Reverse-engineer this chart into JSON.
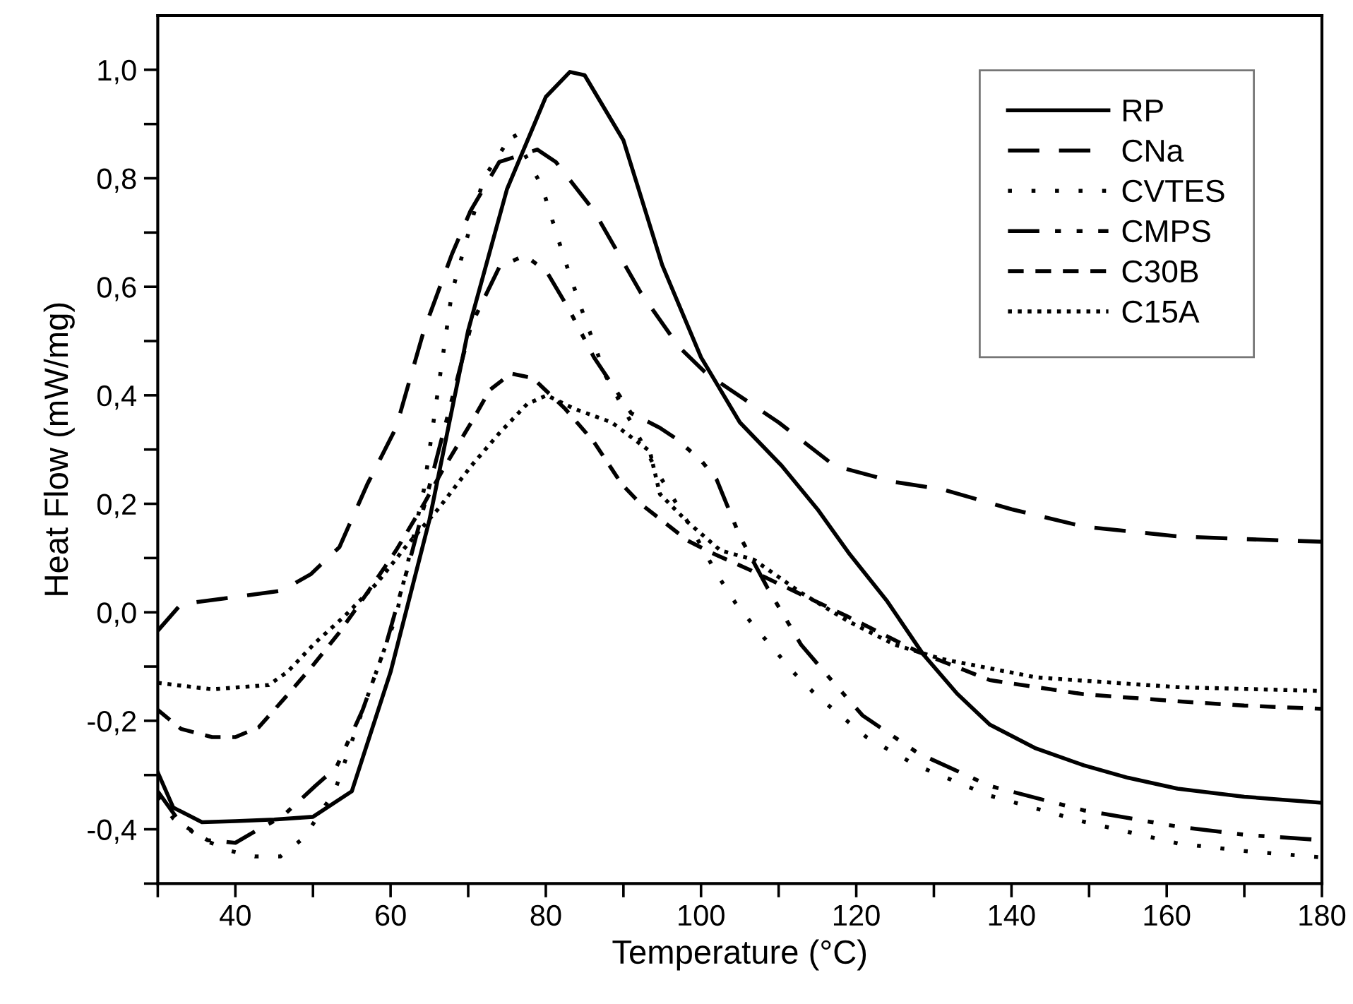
{
  "chart_data": {
    "type": "line",
    "xlabel": "Temperature (°C)",
    "ylabel": "Heat Flow (mW/mg)",
    "xlim": [
      30,
      180
    ],
    "ylim": [
      -0.5,
      1.1
    ],
    "xticks": [
      {
        "value": 30,
        "label": null
      },
      40,
      {
        "value": 50,
        "label": null
      },
      60,
      {
        "value": 70,
        "label": null
      },
      80,
      {
        "value": 90,
        "label": null
      },
      100,
      {
        "value": 110,
        "label": null
      },
      120,
      {
        "value": 130,
        "label": null
      },
      140,
      {
        "value": 150,
        "label": null
      },
      160,
      {
        "value": 170,
        "label": null
      },
      180
    ],
    "yticks": [
      {
        "value": -0.5,
        "label": null
      },
      {
        "value": -0.4,
        "label": "-0,4"
      },
      {
        "value": -0.3,
        "label": null
      },
      {
        "value": -0.2,
        "label": "-0,2"
      },
      {
        "value": -0.1,
        "label": null
      },
      {
        "value": 0.0,
        "label": "0,0"
      },
      {
        "value": 0.1,
        "label": null
      },
      {
        "value": 0.2,
        "label": "0,2"
      },
      {
        "value": 0.3,
        "label": null
      },
      {
        "value": 0.4,
        "label": "0,4"
      },
      {
        "value": 0.5,
        "label": null
      },
      {
        "value": 0.6,
        "label": "0,6"
      },
      {
        "value": 0.7,
        "label": null
      },
      {
        "value": 0.8,
        "label": "0,8"
      },
      {
        "value": 0.9,
        "label": null
      },
      {
        "value": 1.0,
        "label": "1,0"
      }
    ],
    "grid": false,
    "legend": "top right",
    "marker": "none",
    "series": [
      {
        "name": "RP",
        "color": "#000000",
        "line_style": "solid",
        "x": [
          30,
          32,
          35.7,
          40,
          45,
          50,
          55,
          60,
          65,
          70,
          75,
          80,
          83.1,
          85,
          90,
          95,
          100,
          105,
          110.4,
          115,
          119,
          124,
          128.6,
          133,
          137.2,
          143,
          149.3,
          155,
          161.4,
          170,
          180
        ],
        "values": [
          -0.295,
          -0.36,
          -0.387,
          -0.385,
          -0.382,
          -0.377,
          -0.33,
          -0.11,
          0.17,
          0.52,
          0.78,
          0.95,
          0.996,
          0.99,
          0.87,
          0.64,
          0.47,
          0.35,
          0.27,
          0.19,
          0.11,
          0.02,
          -0.077,
          -0.15,
          -0.207,
          -0.25,
          -0.282,
          -0.305,
          -0.325,
          -0.34,
          -0.351
        ]
      },
      {
        "name": "CNa",
        "color": "#000000",
        "line_style": "dashed",
        "x": [
          30,
          33,
          40,
          46,
          49.7,
          53.4,
          57,
          60.7,
          64.3,
          67.9,
          70.3,
          74,
          78.9,
          81.3,
          86.2,
          92.2,
          97.1,
          100.7,
          103.8,
          110,
          117.2,
          125,
          131,
          140,
          149.3,
          161.4,
          170,
          180
        ],
        "values": [
          -0.034,
          0.015,
          0.028,
          0.04,
          0.07,
          0.12,
          0.236,
          0.34,
          0.52,
          0.66,
          0.74,
          0.83,
          0.853,
          0.83,
          0.74,
          0.59,
          0.49,
          0.44,
          0.41,
          0.35,
          0.27,
          0.24,
          0.227,
          0.19,
          0.158,
          0.14,
          0.135,
          0.13
        ]
      },
      {
        "name": "CVTES",
        "color": "#000000",
        "line_style": "dotted",
        "x": [
          30,
          32,
          36,
          39.4,
          42.5,
          45.8,
          48.8,
          52.8,
          56.4,
          60.7,
          64.3,
          67.9,
          72,
          75.8,
          79.5,
          82.2,
          84.4,
          87.7,
          91,
          94.6,
          98.3,
          102.2,
          104.4,
          106.8,
          109.5,
          112,
          115,
          118.3,
          121.3,
          127.7,
          137.2,
          149.3,
          161.4,
          170,
          180
        ],
        "values": [
          -0.34,
          -0.38,
          -0.42,
          -0.44,
          -0.45,
          -0.45,
          -0.416,
          -0.33,
          -0.18,
          -0.008,
          0.227,
          0.59,
          0.8,
          0.884,
          0.785,
          0.66,
          0.567,
          0.436,
          0.35,
          0.253,
          0.166,
          0.067,
          0.018,
          -0.025,
          -0.07,
          -0.112,
          -0.155,
          -0.194,
          -0.23,
          -0.282,
          -0.338,
          -0.386,
          -0.426,
          -0.44,
          -0.452
        ]
      },
      {
        "name": "CMPS",
        "color": "#000000",
        "line_style": "dashdot",
        "x": [
          30,
          33,
          36.4,
          40,
          43,
          46,
          50.3,
          53,
          56.4,
          59.4,
          62.5,
          64.9,
          70.4,
          74,
          77.3,
          80.1,
          83,
          86.2,
          91,
          94.7,
          96.8,
          100,
          102,
          105,
          108.6,
          112.9,
          117.1,
          120.8,
          128,
          137.2,
          149.3,
          161.4,
          170,
          180
        ],
        "values": [
          -0.33,
          -0.39,
          -0.42,
          -0.425,
          -0.4,
          -0.377,
          -0.32,
          -0.286,
          -0.18,
          -0.06,
          0.097,
          0.227,
          0.53,
          0.636,
          0.658,
          0.628,
          0.558,
          0.47,
          0.367,
          0.34,
          0.32,
          0.28,
          0.245,
          0.14,
          0.044,
          -0.06,
          -0.13,
          -0.19,
          -0.26,
          -0.32,
          -0.365,
          -0.395,
          -0.41,
          -0.42
        ]
      },
      {
        "name": "C30B",
        "color": "#000000",
        "line_style": "densely dashed",
        "x": [
          30,
          33,
          37,
          40,
          43,
          46,
          49.7,
          53.4,
          57,
          60.7,
          64.3,
          66.7,
          70.4,
          72.8,
          75.5,
          78.3,
          82.5,
          86.2,
          89.8,
          92.2,
          98.3,
          101.3,
          106,
          109.8,
          118.9,
          128,
          137.2,
          149.3,
          161.4,
          170,
          180
        ],
        "values": [
          -0.18,
          -0.215,
          -0.23,
          -0.23,
          -0.212,
          -0.164,
          -0.103,
          -0.037,
          0.036,
          0.114,
          0.2,
          0.262,
          0.35,
          0.41,
          0.44,
          0.432,
          0.375,
          0.314,
          0.236,
          0.2,
          0.132,
          0.11,
          0.08,
          0.054,
          -0.008,
          -0.073,
          -0.125,
          -0.151,
          -0.164,
          -0.172,
          -0.178
        ]
      },
      {
        "name": "C15A",
        "color": "#000000",
        "line_style": "densely dotted",
        "x": [
          30,
          37,
          44.3,
          46.7,
          50.3,
          54,
          58.2,
          61.9,
          66.1,
          70.4,
          74,
          77.6,
          80.1,
          83.7,
          88.5,
          93.4,
          94.7,
          98.3,
          102.5,
          106.8,
          112.9,
          118.9,
          125,
          131,
          143.2,
          161.4,
          180
        ],
        "values": [
          -0.13,
          -0.142,
          -0.134,
          -0.11,
          -0.056,
          -0.008,
          0.053,
          0.12,
          0.19,
          0.27,
          0.33,
          0.384,
          0.4,
          0.375,
          0.35,
          0.297,
          0.218,
          0.166,
          0.114,
          0.097,
          0.036,
          -0.016,
          -0.06,
          -0.086,
          -0.12,
          -0.138,
          -0.145
        ]
      }
    ]
  }
}
